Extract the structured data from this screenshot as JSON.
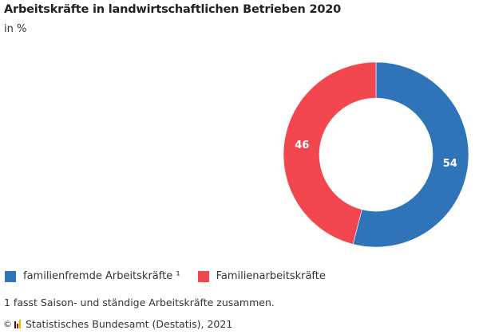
{
  "header": {
    "title": "Arbeitskräfte in landwirtschaftlichen Betrieben 2020",
    "subtitle": "in %"
  },
  "chart_data": {
    "type": "pie",
    "variant": "donut",
    "title": "Arbeitskräfte in landwirtschaftlichen Betrieben 2020",
    "unit": "in %",
    "categories": [
      "familienfremde Arbeitskräfte ¹",
      "Familienarbeitskräfte"
    ],
    "values": [
      54,
      46
    ],
    "labels": [
      "54",
      "46"
    ],
    "colors": [
      "#2f73b8",
      "#f2474f"
    ],
    "legend_position": "bottom-left"
  },
  "legend": {
    "items": [
      {
        "label": "familienfremde Arbeitskräfte ¹",
        "color": "#2f73b8"
      },
      {
        "label": "Familienarbeitskräfte",
        "color": "#f2474f"
      }
    ]
  },
  "footnote": "1 fasst Saison- und ständige Arbeitskräfte zusammen.",
  "source": {
    "copyright": "©",
    "text": "Statistisches Bundesamt (Destatis), 2021",
    "logo_colors": [
      "#222222",
      "#e3000f",
      "#f2b700"
    ]
  }
}
